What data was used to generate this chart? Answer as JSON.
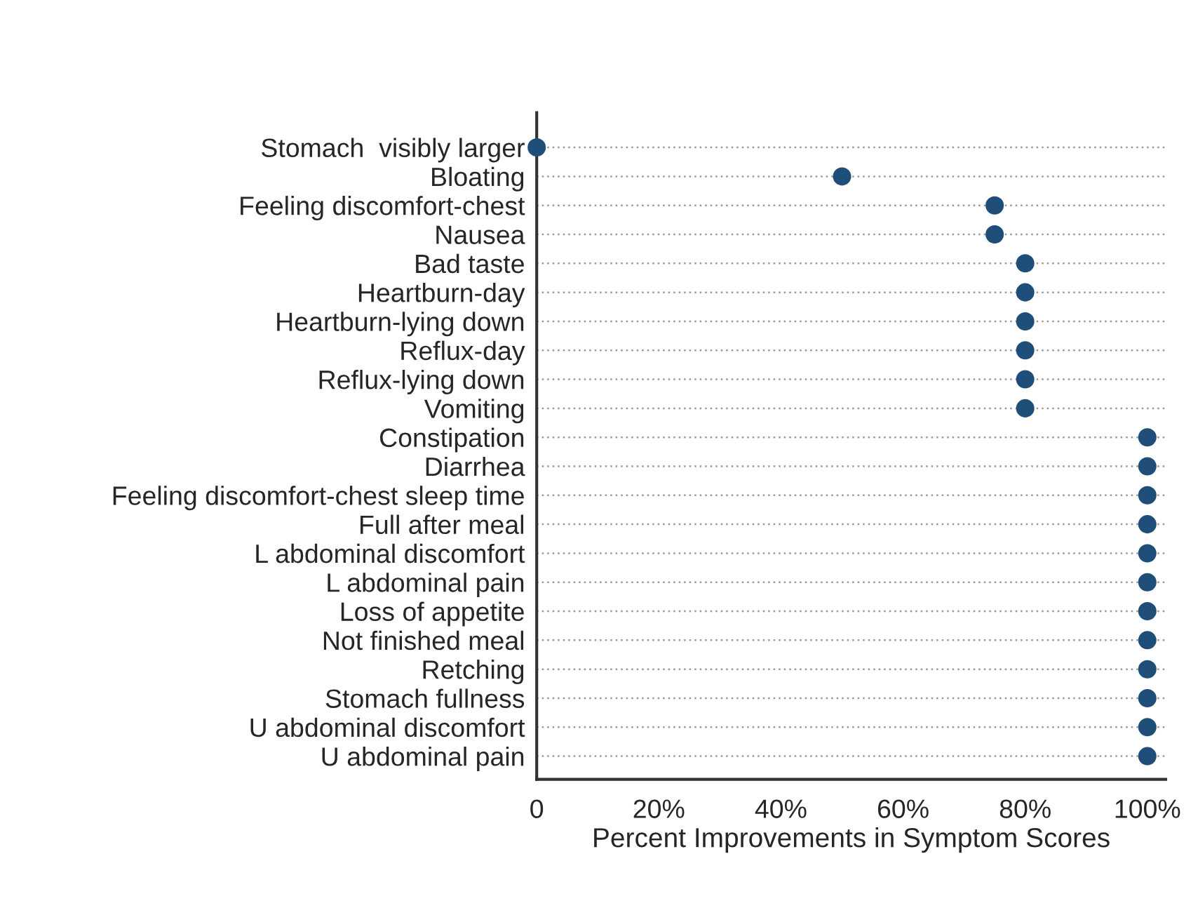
{
  "chart_data": {
    "type": "scatter",
    "orientation": "horizontal",
    "xlabel": "Percent Improvements in Symptom Scores",
    "categories": [
      "Stomach  visibly larger",
      "Bloating",
      "Feeling discomfort-chest",
      "Nausea",
      "Bad taste",
      "Heartburn-day",
      "Heartburn-lying down",
      "Reflux-day",
      "Reflux-lying down",
      "Vomiting",
      "Constipation",
      "Diarrhea",
      "Feeling discomfort-chest sleep time",
      "Full after meal",
      "L abdominal discomfort",
      "L abdominal pain",
      "Loss of appetite",
      "Not finished meal",
      "Retching",
      "Stomach fullness",
      "U abdominal discomfort",
      "U abdominal pain"
    ],
    "series": [
      {
        "color": "#1f4e79",
        "values": [
          0,
          50,
          75,
          75,
          80,
          80,
          80,
          80,
          80,
          80,
          100,
          100,
          100,
          100,
          100,
          100,
          100,
          100,
          100,
          100,
          100,
          100
        ]
      }
    ],
    "xlim": [
      0,
      103
    ],
    "xticks": [
      0,
      {
        "value": 20,
        "label": "20%"
      },
      {
        "value": 40,
        "label": "40%"
      },
      {
        "value": 60,
        "label": "60%"
      },
      {
        "value": 80,
        "label": "80%"
      },
      {
        "value": 100,
        "label": "100%"
      }
    ],
    "grid": "y",
    "marker": "circle"
  }
}
